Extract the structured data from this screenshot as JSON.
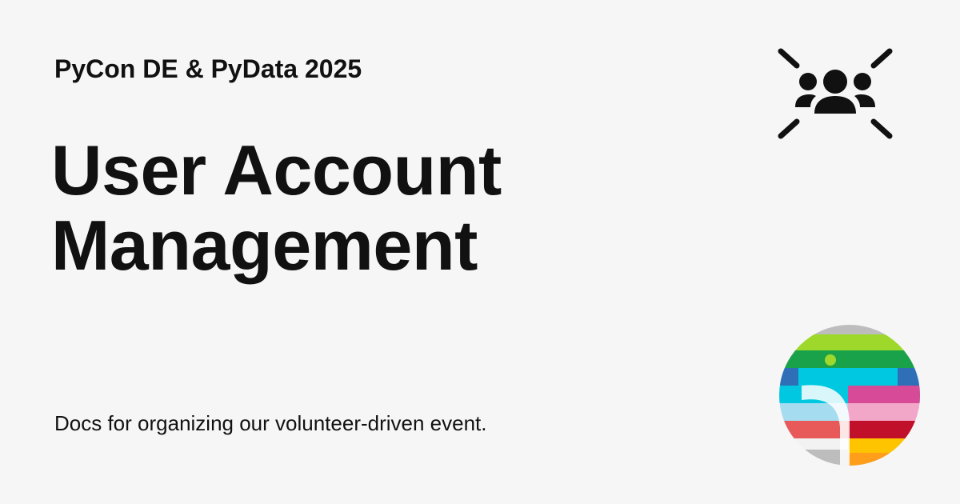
{
  "card": {
    "event_name": "PyCon DE & PyData 2025",
    "title_lines": [
      "User Account",
      "Management"
    ],
    "description": "Docs for organizing our volunteer-driven event."
  },
  "icons": {
    "top_right": "users-focus-icon",
    "bottom_right": "pycon-de-pydata-logo"
  },
  "colors": {
    "background": "#f6f6f6",
    "text": "#111111",
    "logo_stripes": [
      "#bdbdbd",
      "#9dd82b",
      "#1aa24a",
      "#8fd12a",
      "#2f6fb8",
      "#00c8e0",
      "#d64a98",
      "#a6dcef",
      "#e85a5a",
      "#c0102a",
      "#ffc400",
      "#ff9e1b"
    ]
  }
}
